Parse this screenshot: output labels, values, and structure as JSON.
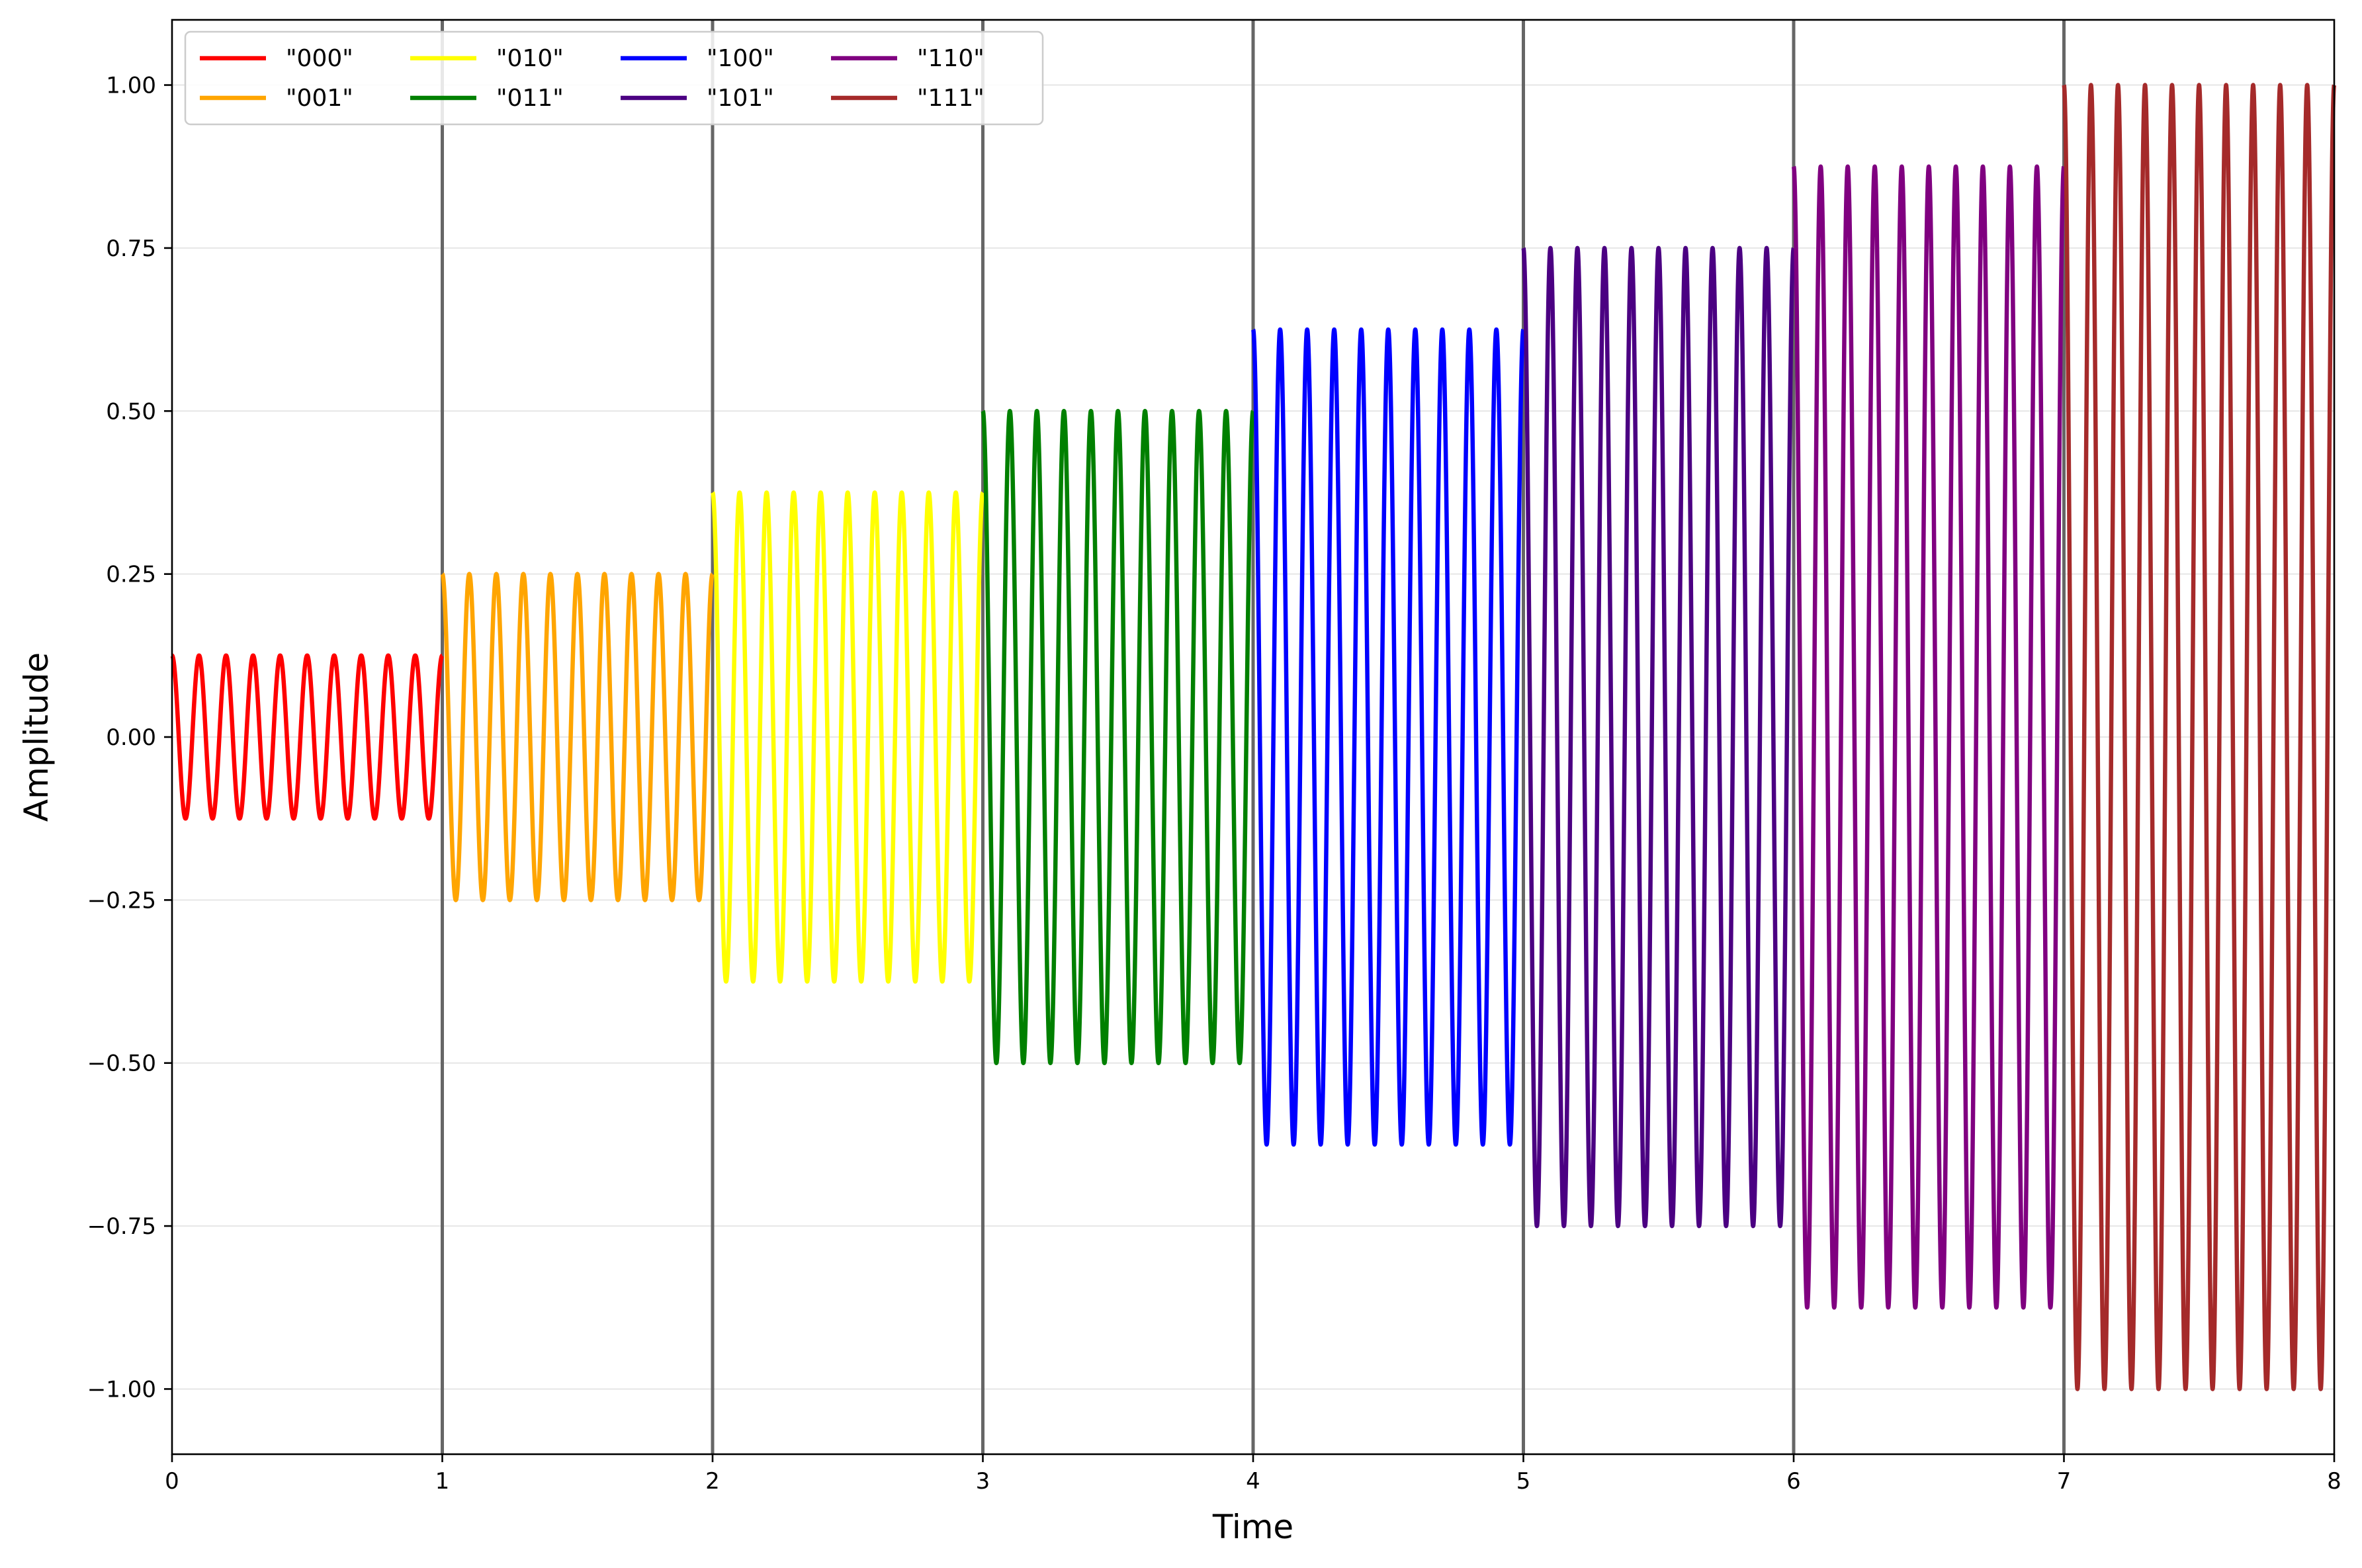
{
  "chart_data": {
    "type": "line",
    "title": "",
    "xlabel": "Time",
    "ylabel": "Amplitude",
    "xlim": [
      0,
      8
    ],
    "ylim": [
      -1.1,
      1.1
    ],
    "x_ticks": [
      "0",
      "1",
      "2",
      "3",
      "4",
      "5",
      "6",
      "7",
      "8"
    ],
    "y_ticks": [
      "1.00",
      "0.75",
      "0.50",
      "0.25",
      "0.00",
      "−0.25",
      "−0.50",
      "−0.75",
      "−1.00"
    ],
    "y_tick_values": [
      1.0,
      0.75,
      0.5,
      0.25,
      0.0,
      -0.25,
      -0.5,
      -0.75,
      -1.0
    ],
    "horizontal_grid": true,
    "vertical_lines_at": [
      1,
      2,
      3,
      4,
      5,
      6,
      7
    ],
    "vertical_line_color": "#666666",
    "grid_color": "#e6e6e6",
    "legend_position": "top-left",
    "legend_columns": 4,
    "cycles_per_segment": 10,
    "series": [
      {
        "name": "\"000\"",
        "start": 0,
        "end": 1,
        "amplitude": 0.125,
        "color": "#ff0000"
      },
      {
        "name": "\"001\"",
        "start": 1,
        "end": 2,
        "amplitude": 0.25,
        "color": "#ffa500"
      },
      {
        "name": "\"010\"",
        "start": 2,
        "end": 3,
        "amplitude": 0.375,
        "color": "#ffff00"
      },
      {
        "name": "\"011\"",
        "start": 3,
        "end": 4,
        "amplitude": 0.5,
        "color": "#008000"
      },
      {
        "name": "\"100\"",
        "start": 4,
        "end": 5,
        "amplitude": 0.625,
        "color": "#0000ff"
      },
      {
        "name": "\"101\"",
        "start": 5,
        "end": 6,
        "amplitude": 0.75,
        "color": "#4b0082"
      },
      {
        "name": "\"110\"",
        "start": 6,
        "end": 7,
        "amplitude": 0.875,
        "color": "#800080"
      },
      {
        "name": "\"111\"",
        "start": 7,
        "end": 8,
        "amplitude": 1.0,
        "color": "#a52a2a"
      }
    ]
  }
}
